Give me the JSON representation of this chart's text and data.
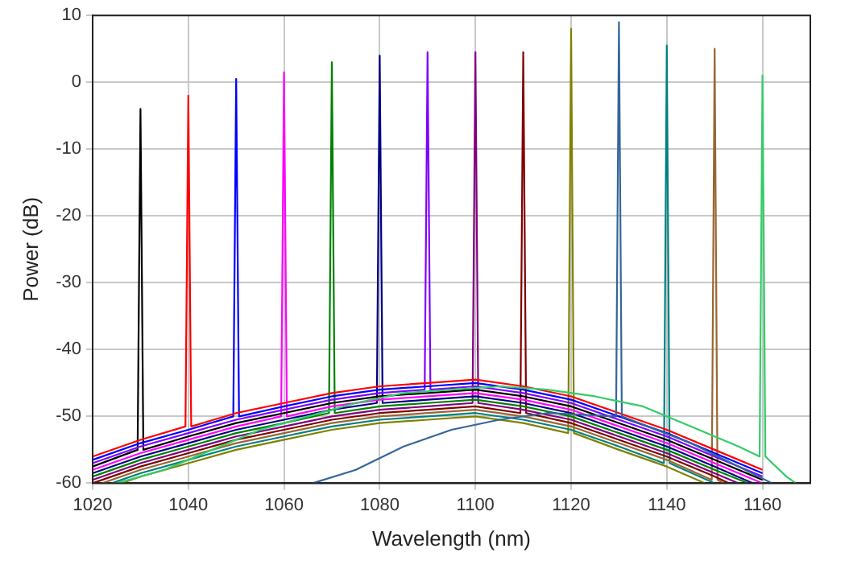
{
  "chart_data": {
    "type": "line",
    "xlabel": "Wavelength (nm)",
    "ylabel": "Power (dB)",
    "xlim": [
      1020,
      1170
    ],
    "xticks": [
      1020,
      1040,
      1060,
      1080,
      1100,
      1120,
      1140,
      1160
    ],
    "ylim": [
      -60,
      10
    ],
    "yticks": [
      -60,
      -50,
      -40,
      -30,
      -20,
      -10,
      0,
      10
    ],
    "grid": true,
    "legend": false,
    "marker": "none",
    "line_style": "solid",
    "series": [
      {
        "color": "#33cc66",
        "x": [
          1025,
          1035,
          1045,
          1055,
          1065,
          1075,
          1085,
          1095,
          1105,
          1115,
          1125,
          1135,
          1145,
          1155,
          1159.4,
          1160,
          1160.6,
          1165,
          1167
        ],
        "values": [
          -60,
          -58,
          -55,
          -52,
          -50,
          -48,
          -46.5,
          -46,
          -45.5,
          -46,
          -47,
          -48.5,
          -51.5,
          -54.5,
          -56,
          1,
          -56,
          -59,
          -60
        ]
      },
      {
        "color": "#336699",
        "x": [
          1066,
          1075,
          1085,
          1095,
          1105,
          1115,
          1129.4,
          1130,
          1130.6,
          1145,
          1155,
          1162
        ],
        "values": [
          -60,
          -58,
          -54.5,
          -52,
          -50.5,
          -49.5,
          -50,
          9,
          -50,
          -54,
          -57.5,
          -60
        ]
      },
      {
        "color": "#ff0000",
        "x": [
          1020,
          1030,
          1039.4,
          1040,
          1040.6,
          1050,
          1060,
          1070,
          1080,
          1090,
          1100,
          1110,
          1120,
          1130,
          1140,
          1150,
          1160
        ],
        "values": [
          -56,
          -53.5,
          -51.5,
          -2,
          -51.5,
          -49.5,
          -48,
          -46.5,
          -45.5,
          -45,
          -44.5,
          -45.5,
          -47,
          -49.5,
          -52,
          -55,
          -58
        ]
      },
      {
        "color": "#0000ff",
        "x": [
          1020,
          1030,
          1040,
          1049.4,
          1050,
          1050.6,
          1060,
          1070,
          1080,
          1090,
          1100,
          1110,
          1120,
          1130,
          1140,
          1150,
          1160
        ],
        "values": [
          -56.5,
          -54,
          -52,
          -50,
          0.5,
          -50,
          -48.5,
          -47,
          -46,
          -45.5,
          -45,
          -46,
          -47.5,
          -50,
          -52.5,
          -55.5,
          -58.5
        ]
      },
      {
        "color": "#8000ff",
        "x": [
          1020,
          1030,
          1040,
          1050,
          1060,
          1070,
          1080,
          1089.4,
          1090,
          1090.6,
          1100,
          1110,
          1120,
          1130,
          1140,
          1150,
          1160
        ],
        "values": [
          -57,
          -54.5,
          -52.5,
          -50.5,
          -49,
          -47.5,
          -46.5,
          -46,
          4.5,
          -46,
          -45.5,
          -46.5,
          -48,
          -50.5,
          -53,
          -56,
          -59
        ]
      },
      {
        "color": "#000000",
        "x": [
          1020,
          1029.4,
          1030,
          1030.6,
          1040,
          1050,
          1060,
          1070,
          1080,
          1090,
          1100,
          1110,
          1120,
          1130,
          1140,
          1150,
          1160
        ],
        "values": [
          -57.5,
          -55,
          -4,
          -55,
          -53,
          -51,
          -49.5,
          -48,
          -47,
          -46.5,
          -46,
          -47,
          -48.5,
          -51,
          -53.5,
          -56.5,
          -59.5
        ]
      },
      {
        "color": "#ff00ff",
        "x": [
          1020,
          1030,
          1040,
          1050,
          1059.4,
          1060,
          1060.6,
          1070,
          1080,
          1090,
          1100,
          1110,
          1120,
          1130,
          1140,
          1150,
          1160
        ],
        "values": [
          -58,
          -55.5,
          -53.5,
          -51.5,
          -50,
          1.5,
          -50,
          -48.5,
          -47.5,
          -47,
          -46.5,
          -47.5,
          -49,
          -51.5,
          -54,
          -57,
          -60
        ]
      },
      {
        "color": "#000080",
        "x": [
          1020,
          1030,
          1040,
          1050,
          1060,
          1070,
          1079.4,
          1080,
          1080.6,
          1090,
          1100,
          1110,
          1120,
          1130,
          1140,
          1150,
          1158
        ],
        "values": [
          -58.5,
          -56,
          -54,
          -52,
          -50.5,
          -49,
          -48,
          4,
          -48,
          -47.5,
          -47,
          -48,
          -49.5,
          -52,
          -54.5,
          -57.5,
          -60
        ]
      },
      {
        "color": "#008000",
        "x": [
          1020,
          1030,
          1040,
          1050,
          1060,
          1069.4,
          1070,
          1070.6,
          1080,
          1090,
          1100,
          1110,
          1120,
          1130,
          1140,
          1150,
          1157
        ],
        "values": [
          -59,
          -56.5,
          -54.5,
          -52.5,
          -51,
          -49.5,
          3,
          -49.5,
          -48.5,
          -48,
          -47.5,
          -48.5,
          -50,
          -52.5,
          -55,
          -58,
          -60
        ]
      },
      {
        "color": "#800080",
        "x": [
          1020,
          1030,
          1040,
          1050,
          1060,
          1070,
          1080,
          1090,
          1099.4,
          1100,
          1100.6,
          1110,
          1120,
          1130,
          1140,
          1150,
          1155
        ],
        "values": [
          -59.5,
          -57,
          -55,
          -53,
          -51.5,
          -50,
          -49,
          -48.5,
          -48,
          4.5,
          -48,
          -49,
          -50.5,
          -53,
          -55.5,
          -58.5,
          -60
        ]
      },
      {
        "color": "#800000",
        "x": [
          1020,
          1030,
          1040,
          1050,
          1060,
          1070,
          1080,
          1090,
          1100,
          1109.4,
          1110,
          1110.6,
          1120,
          1130,
          1140,
          1150,
          1153
        ],
        "values": [
          -60,
          -57.5,
          -55.5,
          -53.5,
          -52,
          -50.5,
          -49.5,
          -49,
          -48.5,
          -49.5,
          4.5,
          -49.5,
          -51,
          -53.5,
          -56,
          -59,
          -60
        ]
      },
      {
        "color": "#996633",
        "x": [
          1022,
          1030,
          1040,
          1050,
          1060,
          1070,
          1080,
          1090,
          1100,
          1110,
          1120,
          1130,
          1140,
          1149.4,
          1150,
          1150.6,
          1152
        ],
        "values": [
          -60,
          -58,
          -56,
          -54,
          -52.5,
          -51,
          -50,
          -49.5,
          -49,
          -50,
          -51.5,
          -54,
          -56.5,
          -59.5,
          5,
          -59.5,
          -60
        ]
      },
      {
        "color": "#008080",
        "x": [
          1024,
          1030,
          1040,
          1050,
          1060,
          1070,
          1080,
          1090,
          1100,
          1110,
          1120,
          1130,
          1139.4,
          1140,
          1140.6,
          1150
        ],
        "values": [
          -60,
          -58.5,
          -56.5,
          -54.5,
          -53,
          -51.5,
          -50.5,
          -50,
          -49.5,
          -50.5,
          -52,
          -54.5,
          -57,
          5.5,
          -57,
          -60
        ]
      },
      {
        "color": "#808000",
        "x": [
          1026,
          1030,
          1040,
          1050,
          1060,
          1070,
          1080,
          1090,
          1100,
          1110,
          1119.4,
          1120,
          1120.6,
          1130,
          1140,
          1148
        ],
        "values": [
          -60,
          -59,
          -57,
          -55,
          -53.5,
          -52,
          -51,
          -50.5,
          -50,
          -51,
          -52.5,
          8,
          -52.5,
          -55,
          -57.5,
          -60
        ]
      }
    ]
  }
}
